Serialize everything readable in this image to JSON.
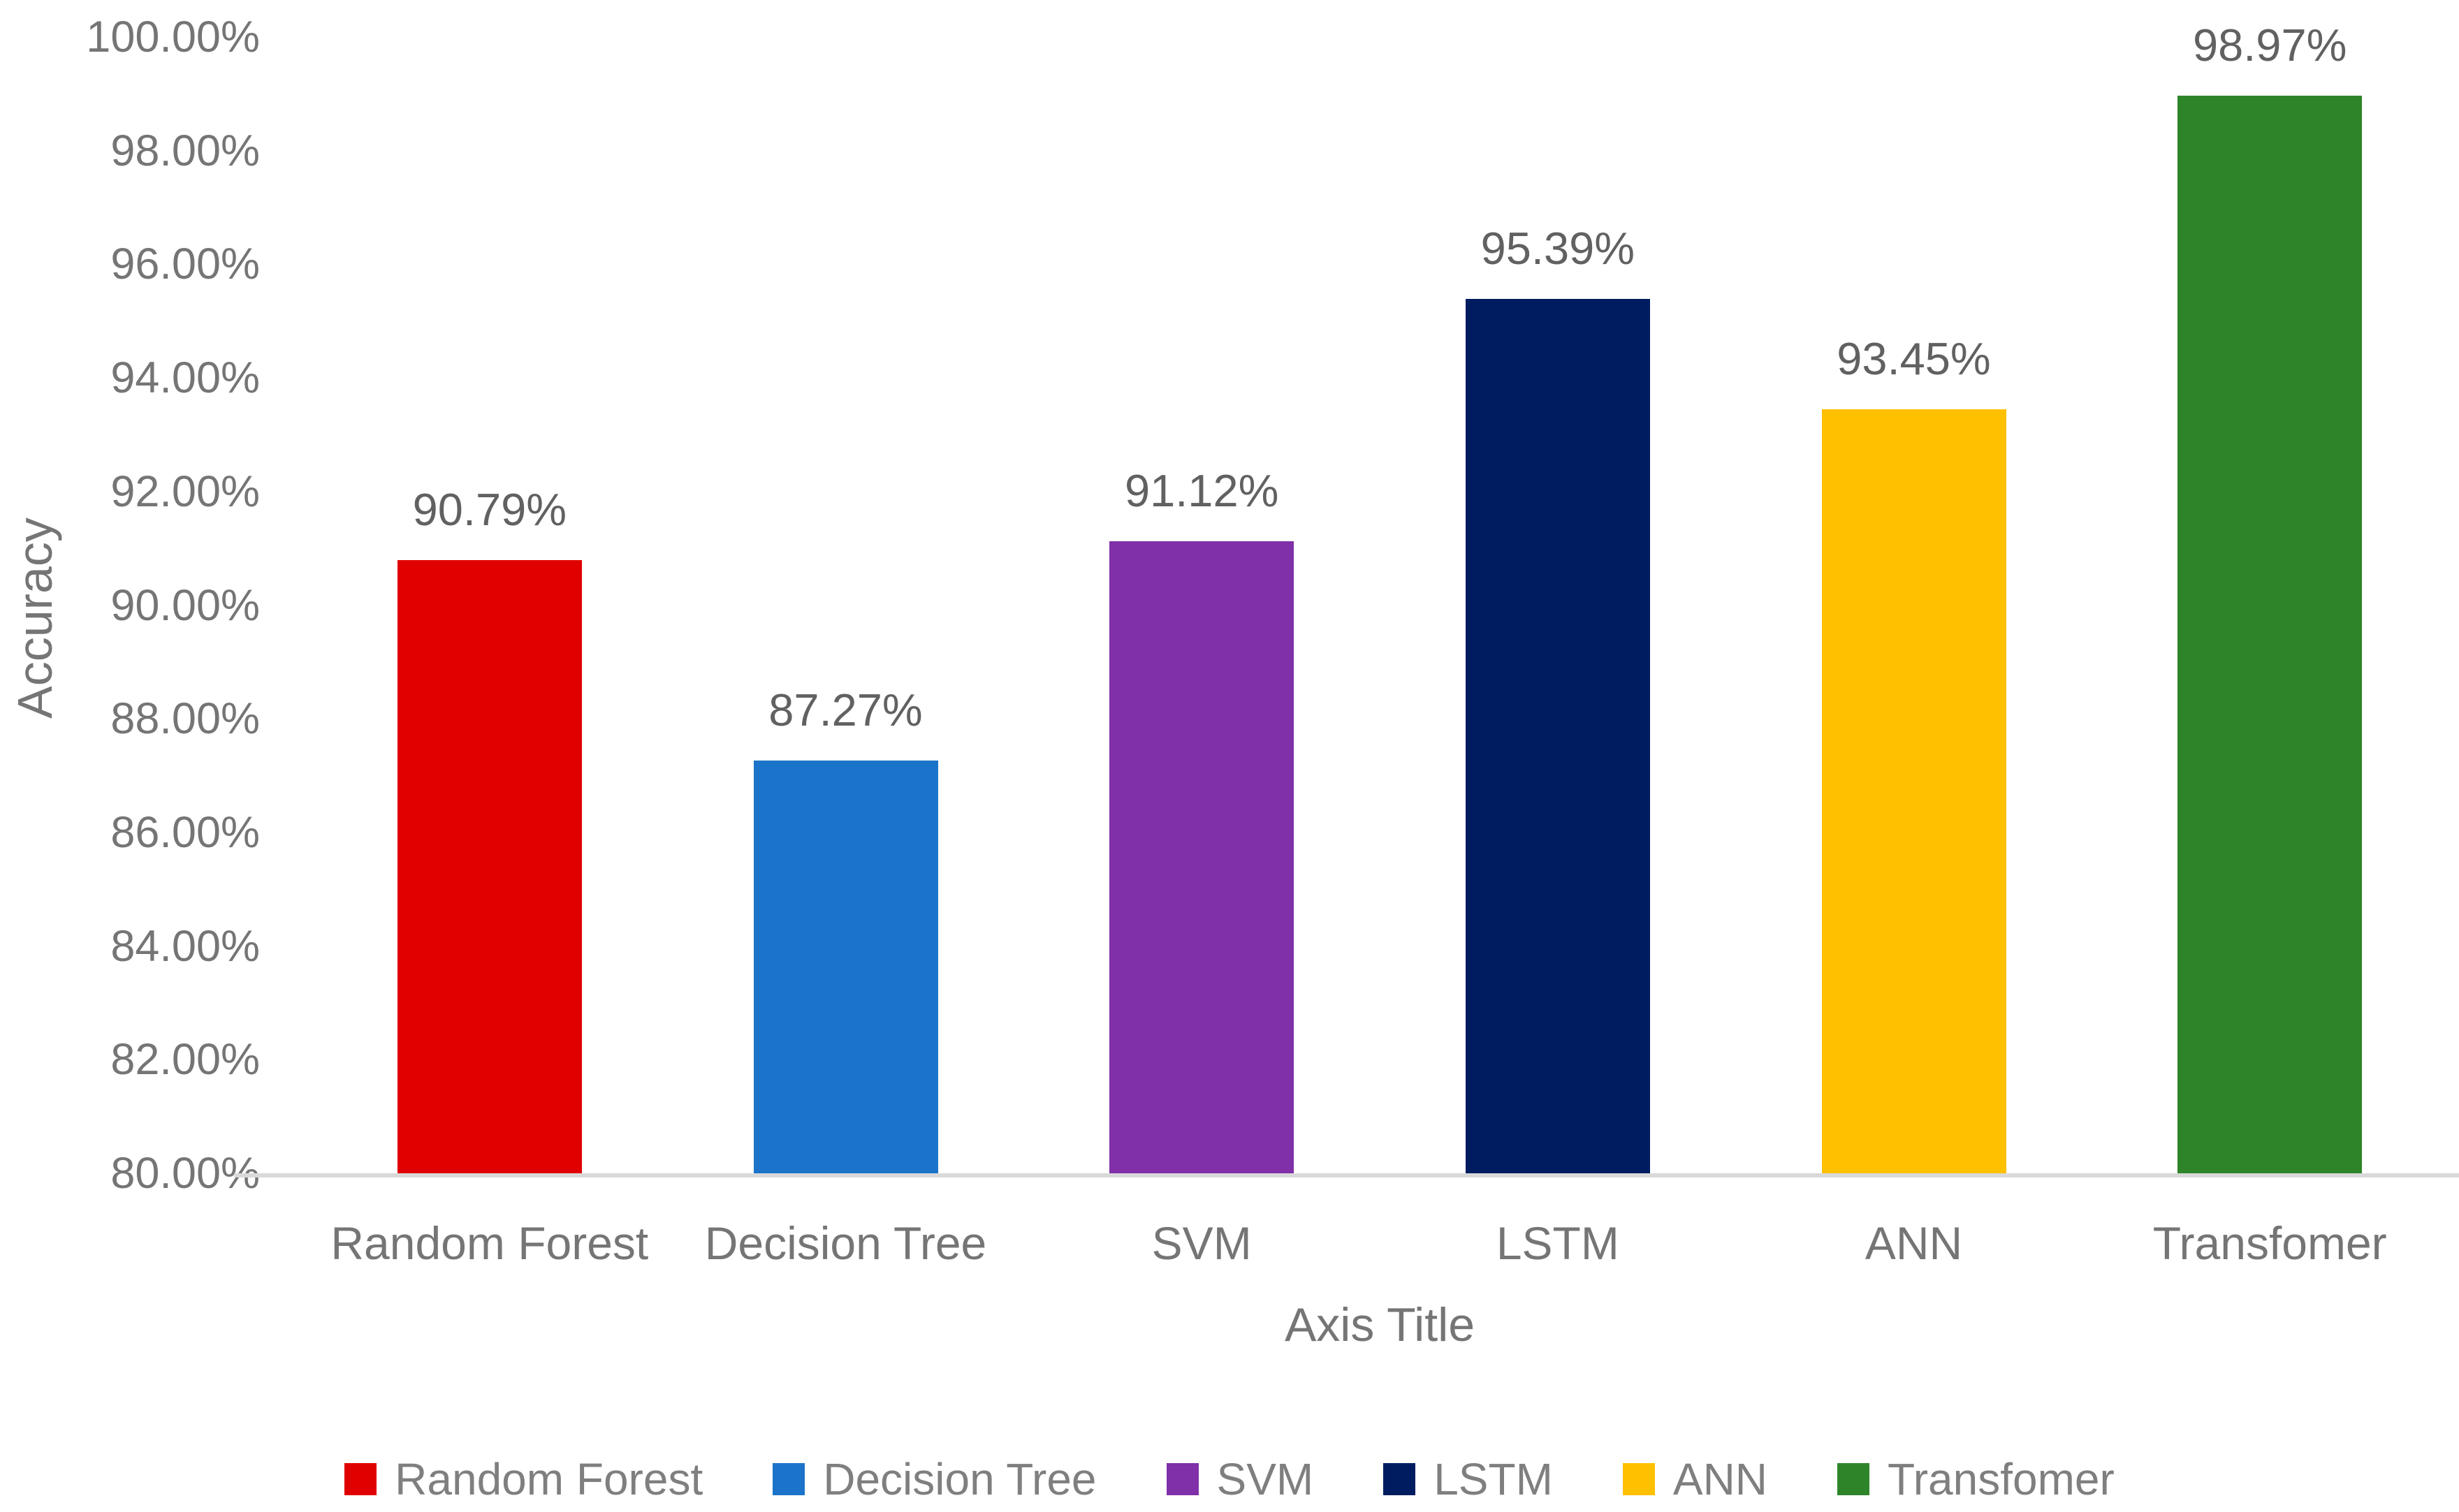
{
  "chart_data": {
    "type": "bar",
    "title": "",
    "xlabel": "Axis Title",
    "ylabel": "Accuracy",
    "categories": [
      "Random Forest",
      "Decision Tree",
      "SVM",
      "LSTM",
      "ANN",
      "Transfomer"
    ],
    "values": [
      90.79,
      87.27,
      91.12,
      95.39,
      93.45,
      98.97
    ],
    "data_labels": [
      "90.79%",
      "87.27%",
      "91.12%",
      "95.39%",
      "93.45%",
      "98.97%"
    ],
    "series_colors": [
      "#e00000",
      "#1b74c9",
      "#8030a8",
      "#001c60",
      "#ffc000",
      "#2e8529"
    ],
    "ylim": [
      80,
      100
    ],
    "y_tick_step": 2,
    "y_ticks": [
      "100.00%",
      "98.00%",
      "96.00%",
      "94.00%",
      "92.00%",
      "90.00%",
      "88.00%",
      "86.00%",
      "84.00%",
      "82.00%",
      "80.00%"
    ],
    "grid": false,
    "axis_line_color": "#d9d9d9",
    "legend": {
      "position": "bottom",
      "entries": [
        "Random Forest",
        "Decision Tree",
        "SVM",
        "LSTM",
        "ANN",
        "Transfomer"
      ]
    }
  }
}
